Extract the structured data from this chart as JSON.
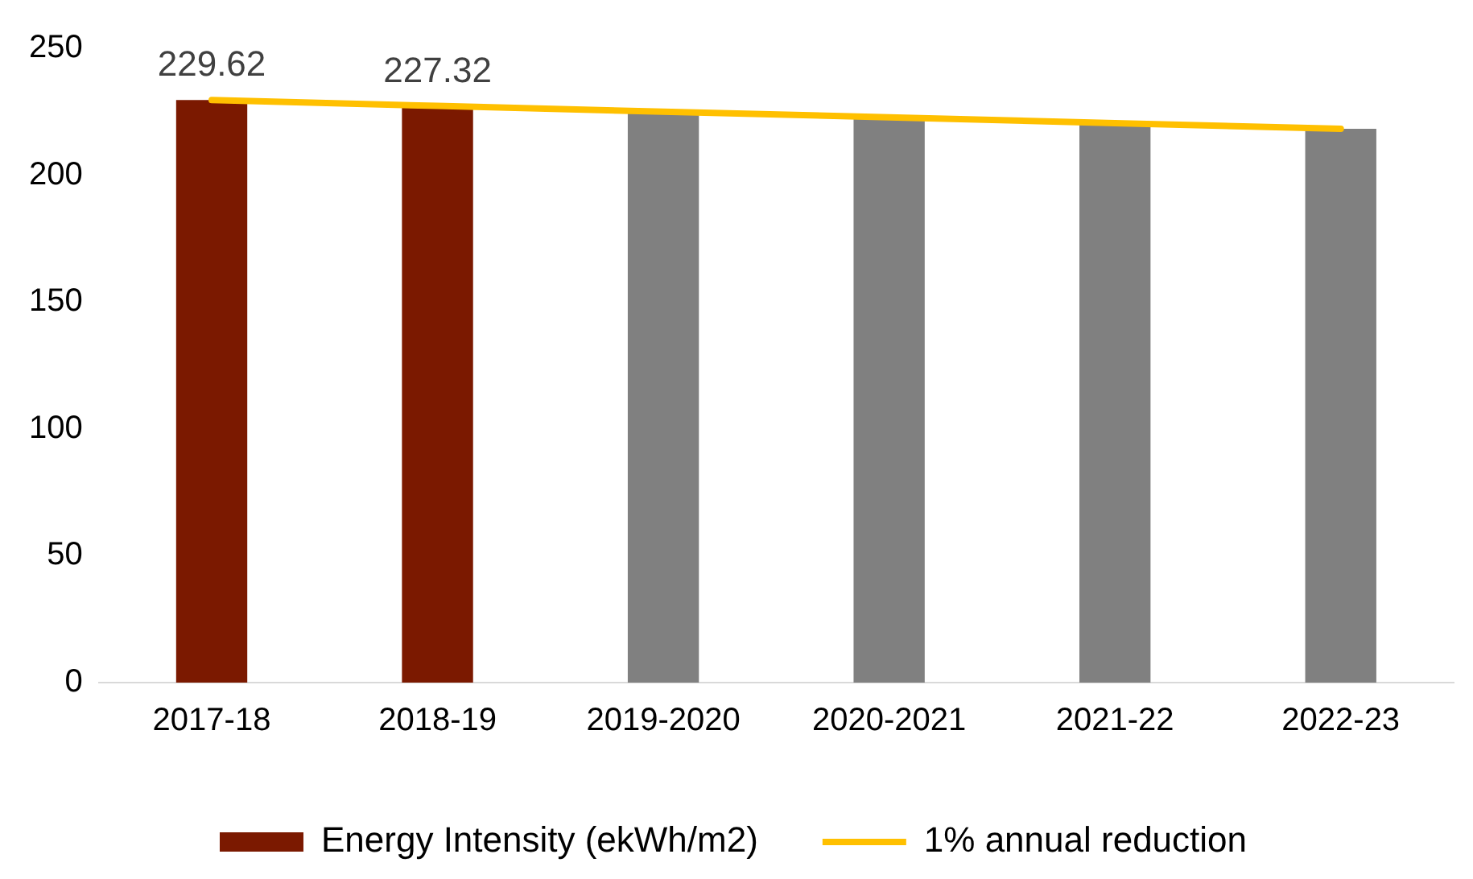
{
  "chart_data": {
    "type": "bar",
    "categories": [
      "2017-18",
      "2018-19",
      "2019-2020",
      "2020-2021",
      "2021-22",
      "2022-23"
    ],
    "series": [
      {
        "name": "Energy Intensity (ekWh/m2)",
        "color": "#7b1900",
        "colors": [
          "#7b1900",
          "#7b1900",
          "#808080",
          "#808080",
          "#808080",
          "#808080"
        ],
        "values": [
          229.62,
          227.32,
          225.0,
          222.8,
          220.5,
          218.3
        ],
        "value_labels": [
          "229.62",
          "227.32",
          null,
          null,
          null,
          null
        ]
      },
      {
        "name": "1% annual reduction",
        "type": "line",
        "color": "#ffc000",
        "values": [
          229.6,
          227.3,
          225.0,
          222.8,
          220.5,
          218.3
        ]
      }
    ],
    "ylim": [
      0,
      250
    ],
    "yticks": [
      0,
      50,
      100,
      150,
      200,
      250
    ],
    "grid": false,
    "legend": "bottom",
    "marker": "none"
  }
}
